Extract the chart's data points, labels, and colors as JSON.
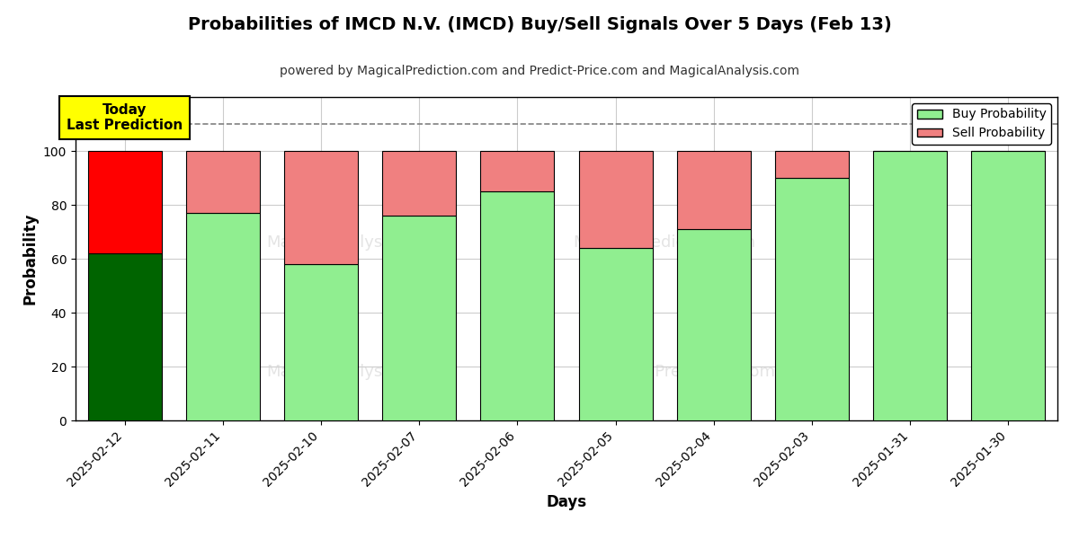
{
  "title": "Probabilities of IMCD N.V. (IMCD) Buy/Sell Signals Over 5 Days (Feb 13)",
  "subtitle": "powered by MagicalPrediction.com and Predict-Price.com and MagicalAnalysis.com",
  "xlabel": "Days",
  "ylabel": "Probability",
  "dates": [
    "2025-02-12",
    "2025-02-11",
    "2025-02-10",
    "2025-02-07",
    "2025-02-06",
    "2025-02-05",
    "2025-02-04",
    "2025-02-03",
    "2025-01-31",
    "2025-01-30"
  ],
  "buy_values": [
    62,
    77,
    58,
    76,
    85,
    64,
    71,
    90,
    100,
    100
  ],
  "sell_values": [
    38,
    23,
    42,
    24,
    15,
    36,
    29,
    10,
    0,
    0
  ],
  "today_index": 0,
  "today_buy_color": "#006400",
  "today_sell_color": "#FF0000",
  "buy_color": "#90EE90",
  "sell_color": "#F08080",
  "today_label_text": "Today\nLast Prediction",
  "today_label_bg": "#FFFF00",
  "dashed_line_y": 110,
  "ylim": [
    0,
    120
  ],
  "yticks": [
    0,
    20,
    40,
    60,
    80,
    100
  ],
  "legend_buy_label": "Buy Probability",
  "legend_sell_label": "Sell Probability",
  "bar_edge_color": "#000000",
  "bar_linewidth": 0.8,
  "grid_color": "#cccccc",
  "title_fontsize": 14,
  "subtitle_fontsize": 10,
  "bar_width": 0.75
}
